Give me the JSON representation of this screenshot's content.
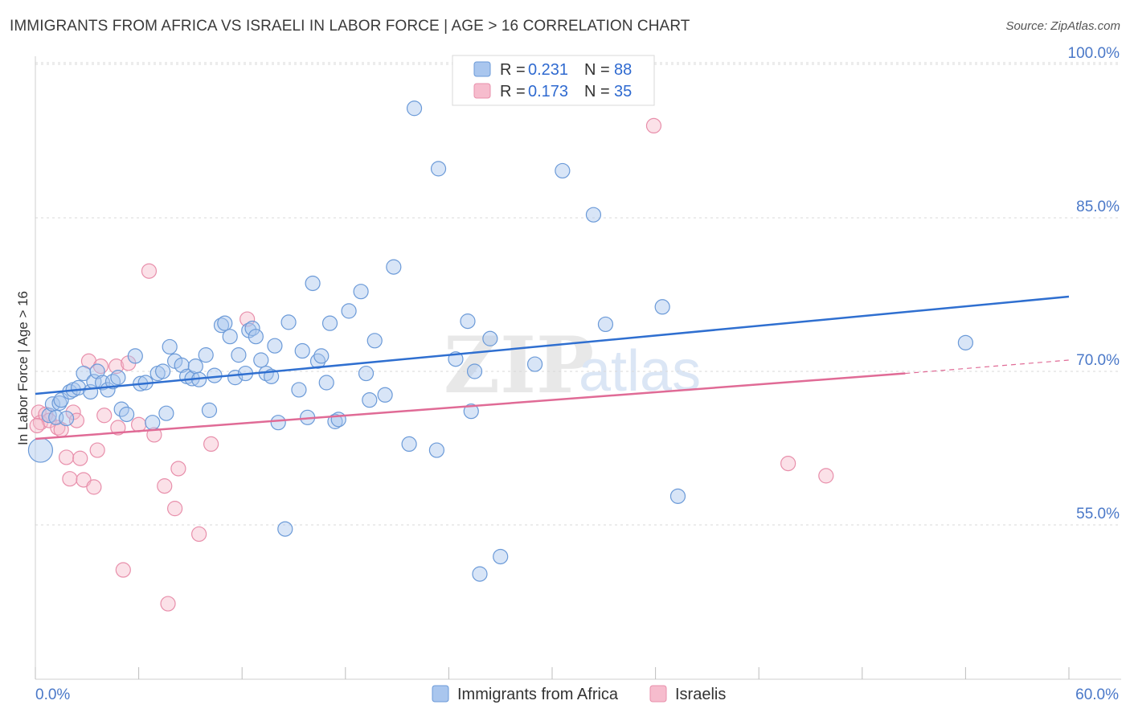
{
  "title": "IMMIGRANTS FROM AFRICA VS ISRAELI IN LABOR FORCE | AGE > 16 CORRELATION CHART",
  "source": "Source: ZipAtlas.com",
  "watermark": {
    "zip": "ZIP",
    "atlas": "atlas"
  },
  "legend": {
    "africa": {
      "r_label": "R =",
      "r_value": "0.231",
      "n_label": "N =",
      "n_value": "88"
    },
    "israelis": {
      "r_label": "R =",
      "r_value": "0.173",
      "n_label": "N =",
      "n_value": "35"
    }
  },
  "colors": {
    "africa_fill": "#a9c6ee",
    "africa_stroke": "#6b9ad8",
    "africa_line": "#2f6fd0",
    "israelis_fill": "#f6bccd",
    "israelis_stroke": "#e88fab",
    "israelis_line": "#e06b96",
    "grid": "#d9d9d9",
    "axis_text": "#4a78c8"
  },
  "chart_data": {
    "type": "scatter",
    "title": "IMMIGRANTS FROM AFRICA VS ISRAELI IN LABOR FORCE | AGE > 16 CORRELATION CHART",
    "xlabel": "",
    "ylabel": "In Labor Force | Age > 16",
    "xlim": [
      0,
      60
    ],
    "ylim": [
      40,
      103
    ],
    "x_tick_labels": [
      "0.0%",
      "60.0%"
    ],
    "y_ticks": [
      55,
      70,
      85,
      100
    ],
    "y_tick_labels": [
      "55.0%",
      "70.0%",
      "85.0%",
      "100.0%"
    ],
    "legend_position": "top-center",
    "series": [
      {
        "name": "Immigrants from Africa",
        "r": 0.231,
        "n": 88,
        "trend": {
          "x": [
            0,
            60
          ],
          "y": [
            67.8,
            77.3
          ]
        },
        "points": [
          {
            "x": 0.3,
            "y": 62.3,
            "big": true
          },
          {
            "x": 0.8,
            "y": 65.7
          },
          {
            "x": 1.0,
            "y": 66.8
          },
          {
            "x": 1.2,
            "y": 65.5
          },
          {
            "x": 1.4,
            "y": 66.9
          },
          {
            "x": 1.5,
            "y": 67.2
          },
          {
            "x": 1.8,
            "y": 65.4
          },
          {
            "x": 2.0,
            "y": 68.0
          },
          {
            "x": 2.2,
            "y": 68.2
          },
          {
            "x": 2.5,
            "y": 68.4
          },
          {
            "x": 2.8,
            "y": 69.8
          },
          {
            "x": 3.2,
            "y": 68.0
          },
          {
            "x": 3.4,
            "y": 69.0
          },
          {
            "x": 3.6,
            "y": 70.0
          },
          {
            "x": 3.9,
            "y": 68.9
          },
          {
            "x": 4.2,
            "y": 68.2
          },
          {
            "x": 4.5,
            "y": 69.0
          },
          {
            "x": 4.8,
            "y": 69.4
          },
          {
            "x": 5.0,
            "y": 66.3
          },
          {
            "x": 5.3,
            "y": 65.8
          },
          {
            "x": 5.8,
            "y": 71.5
          },
          {
            "x": 6.1,
            "y": 68.8
          },
          {
            "x": 6.4,
            "y": 68.9
          },
          {
            "x": 6.8,
            "y": 65.0
          },
          {
            "x": 7.1,
            "y": 69.8
          },
          {
            "x": 7.4,
            "y": 70.0
          },
          {
            "x": 7.6,
            "y": 65.9
          },
          {
            "x": 7.8,
            "y": 72.4
          },
          {
            "x": 8.1,
            "y": 71.0
          },
          {
            "x": 8.5,
            "y": 70.6
          },
          {
            "x": 8.8,
            "y": 69.5
          },
          {
            "x": 9.1,
            "y": 69.3
          },
          {
            "x": 9.3,
            "y": 70.5
          },
          {
            "x": 9.5,
            "y": 69.2
          },
          {
            "x": 9.9,
            "y": 71.6
          },
          {
            "x": 10.1,
            "y": 66.2
          },
          {
            "x": 10.4,
            "y": 69.6
          },
          {
            "x": 10.8,
            "y": 74.5
          },
          {
            "x": 11.0,
            "y": 74.7
          },
          {
            "x": 11.3,
            "y": 73.4
          },
          {
            "x": 11.6,
            "y": 69.4
          },
          {
            "x": 11.8,
            "y": 71.6
          },
          {
            "x": 12.2,
            "y": 69.8
          },
          {
            "x": 12.4,
            "y": 74.0
          },
          {
            "x": 12.6,
            "y": 74.2
          },
          {
            "x": 12.8,
            "y": 73.4
          },
          {
            "x": 13.1,
            "y": 71.1
          },
          {
            "x": 13.4,
            "y": 69.8
          },
          {
            "x": 13.7,
            "y": 69.5
          },
          {
            "x": 13.9,
            "y": 72.5
          },
          {
            "x": 14.1,
            "y": 65.0
          },
          {
            "x": 14.5,
            "y": 54.6
          },
          {
            "x": 14.7,
            "y": 74.8
          },
          {
            "x": 15.3,
            "y": 68.2
          },
          {
            "x": 15.5,
            "y": 72.0
          },
          {
            "x": 15.8,
            "y": 65.5
          },
          {
            "x": 16.1,
            "y": 78.6
          },
          {
            "x": 16.4,
            "y": 71.0
          },
          {
            "x": 16.6,
            "y": 71.5
          },
          {
            "x": 16.9,
            "y": 68.9
          },
          {
            "x": 17.1,
            "y": 74.7
          },
          {
            "x": 17.4,
            "y": 65.1
          },
          {
            "x": 17.6,
            "y": 65.3
          },
          {
            "x": 18.2,
            "y": 75.9
          },
          {
            "x": 18.9,
            "y": 77.8
          },
          {
            "x": 19.2,
            "y": 69.8
          },
          {
            "x": 19.4,
            "y": 67.2
          },
          {
            "x": 19.7,
            "y": 73.0
          },
          {
            "x": 20.3,
            "y": 67.7
          },
          {
            "x": 20.8,
            "y": 80.2
          },
          {
            "x": 21.7,
            "y": 62.9
          },
          {
            "x": 22.0,
            "y": 95.7
          },
          {
            "x": 23.3,
            "y": 62.3
          },
          {
            "x": 23.4,
            "y": 89.8
          },
          {
            "x": 24.4,
            "y": 71.2
          },
          {
            "x": 25.1,
            "y": 74.9
          },
          {
            "x": 25.3,
            "y": 66.1
          },
          {
            "x": 25.8,
            "y": 50.2
          },
          {
            "x": 25.5,
            "y": 70.0
          },
          {
            "x": 26.4,
            "y": 73.2
          },
          {
            "x": 27.0,
            "y": 51.9
          },
          {
            "x": 29.0,
            "y": 70.7
          },
          {
            "x": 30.6,
            "y": 89.6
          },
          {
            "x": 32.4,
            "y": 85.3
          },
          {
            "x": 33.1,
            "y": 74.6
          },
          {
            "x": 36.4,
            "y": 76.3
          },
          {
            "x": 37.3,
            "y": 57.8
          },
          {
            "x": 54.0,
            "y": 72.8
          }
        ]
      },
      {
        "name": "Israelis",
        "r": 0.173,
        "n": 35,
        "trend": {
          "x": [
            0,
            50.5
          ],
          "y": [
            63.4,
            69.8
          ]
        },
        "trend_dashed": {
          "x": [
            50.5,
            60
          ],
          "y": [
            69.8,
            71.1
          ]
        },
        "points": [
          {
            "x": 0.2,
            "y": 66.0
          },
          {
            "x": 0.3,
            "y": 65.0
          },
          {
            "x": 0.6,
            "y": 65.8
          },
          {
            "x": 0.8,
            "y": 65.2
          },
          {
            "x": 1.3,
            "y": 64.5
          },
          {
            "x": 1.5,
            "y": 64.3
          },
          {
            "x": 1.8,
            "y": 61.6
          },
          {
            "x": 2.0,
            "y": 59.5
          },
          {
            "x": 2.2,
            "y": 66.0
          },
          {
            "x": 2.4,
            "y": 65.2
          },
          {
            "x": 2.6,
            "y": 61.5
          },
          {
            "x": 2.8,
            "y": 59.4
          },
          {
            "x": 3.1,
            "y": 71.0
          },
          {
            "x": 3.4,
            "y": 58.7
          },
          {
            "x": 3.6,
            "y": 62.3
          },
          {
            "x": 3.8,
            "y": 70.5
          },
          {
            "x": 4.0,
            "y": 65.7
          },
          {
            "x": 4.7,
            "y": 70.5
          },
          {
            "x": 4.8,
            "y": 64.5
          },
          {
            "x": 5.1,
            "y": 50.6
          },
          {
            "x": 5.4,
            "y": 70.8
          },
          {
            "x": 6.0,
            "y": 64.8
          },
          {
            "x": 6.6,
            "y": 79.8
          },
          {
            "x": 6.9,
            "y": 63.8
          },
          {
            "x": 7.5,
            "y": 58.8
          },
          {
            "x": 7.7,
            "y": 47.3
          },
          {
            "x": 8.1,
            "y": 56.6
          },
          {
            "x": 8.3,
            "y": 60.5
          },
          {
            "x": 9.5,
            "y": 54.1
          },
          {
            "x": 10.2,
            "y": 62.9
          },
          {
            "x": 12.3,
            "y": 75.1
          },
          {
            "x": 35.9,
            "y": 94.0
          },
          {
            "x": 43.7,
            "y": 61.0
          },
          {
            "x": 45.9,
            "y": 59.8
          },
          {
            "x": 0.1,
            "y": 64.7
          }
        ]
      }
    ]
  },
  "bottom_legend": {
    "africa": "Immigrants from Africa",
    "israelis": "Israelis"
  },
  "axis": {
    "ylabel": "In Labor Force | Age > 16",
    "x_left": "0.0%",
    "x_right": "60.0%"
  }
}
